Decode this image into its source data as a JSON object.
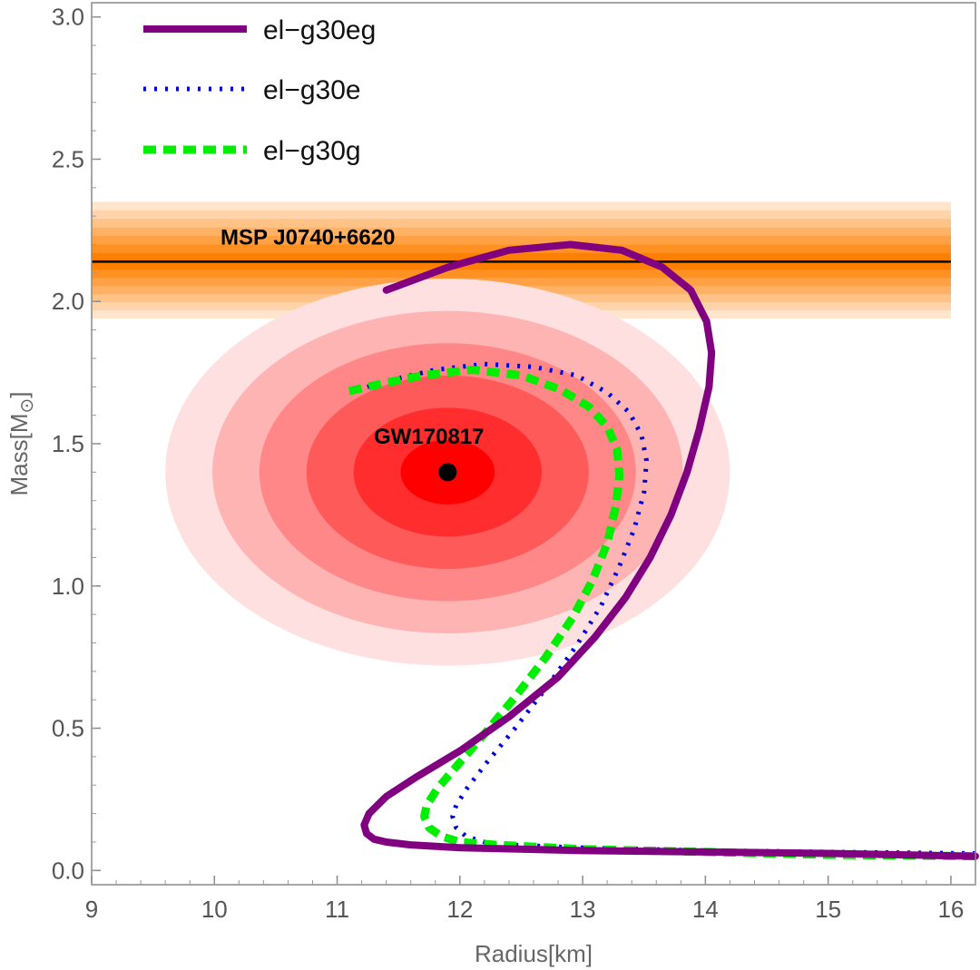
{
  "chart_data": {
    "type": "line",
    "title": "",
    "xlabel": "Radius[km]",
    "ylabel": "Mass[M",
    "ylabel_subscript": "⊙",
    "ylabel_close": "]",
    "xlim": [
      9,
      16.2
    ],
    "ylim": [
      -0.05,
      3.05
    ],
    "xticks": [
      9,
      10,
      11,
      12,
      13,
      14,
      15,
      16
    ],
    "yticks": [
      0.0,
      0.5,
      1.0,
      1.5,
      2.0,
      2.5,
      3.0
    ],
    "xtick_labels": [
      "9",
      "10",
      "11",
      "12",
      "13",
      "14",
      "15",
      "16"
    ],
    "ytick_labels": [
      "0.0",
      "0.5",
      "1.0",
      "1.5",
      "2.0",
      "2.5",
      "3.0"
    ],
    "grid": false,
    "legend_position": "top-left",
    "series": [
      {
        "name": "el−g30eg",
        "color": "#800080",
        "style": "solid",
        "x": [
          16.2,
          15.0,
          14.0,
          13.0,
          12.0,
          11.6,
          11.4,
          11.3,
          11.24,
          11.22,
          11.26,
          11.4,
          11.65,
          12.0,
          12.4,
          12.8,
          13.1,
          13.35,
          13.55,
          13.72,
          13.85,
          13.95,
          14.03,
          14.05,
          14.01,
          13.88,
          13.65,
          13.32,
          12.9,
          12.4,
          11.9,
          11.4
        ],
        "y": [
          0.05,
          0.06,
          0.065,
          0.07,
          0.08,
          0.09,
          0.1,
          0.11,
          0.13,
          0.16,
          0.2,
          0.26,
          0.33,
          0.42,
          0.54,
          0.68,
          0.82,
          0.96,
          1.1,
          1.25,
          1.4,
          1.55,
          1.7,
          1.82,
          1.93,
          2.04,
          2.12,
          2.18,
          2.2,
          2.18,
          2.12,
          2.04
        ]
      },
      {
        "name": "el−g30e",
        "color": "#0000dd",
        "style": "dotted",
        "x": [
          16.2,
          15.0,
          14.0,
          13.0,
          12.4,
          12.2,
          12.05,
          11.97,
          11.94,
          11.97,
          12.06,
          12.22,
          12.45,
          12.7,
          12.95,
          13.15,
          13.3,
          13.42,
          13.5,
          13.52,
          13.48,
          13.38,
          13.2,
          12.95,
          12.6,
          12.2,
          11.8,
          11.4,
          11.1
        ],
        "y": [
          0.06,
          0.065,
          0.07,
          0.08,
          0.09,
          0.1,
          0.12,
          0.15,
          0.19,
          0.23,
          0.29,
          0.38,
          0.5,
          0.64,
          0.79,
          0.93,
          1.07,
          1.2,
          1.33,
          1.44,
          1.53,
          1.61,
          1.68,
          1.74,
          1.77,
          1.78,
          1.76,
          1.72,
          1.68
        ]
      },
      {
        "name": "el−g30g",
        "color": "#00ee00",
        "style": "dashed",
        "x": [
          16.2,
          15.0,
          14.0,
          13.0,
          12.3,
          12.0,
          11.85,
          11.75,
          11.71,
          11.73,
          11.82,
          11.98,
          12.2,
          12.45,
          12.7,
          12.92,
          13.08,
          13.2,
          13.27,
          13.3,
          13.28,
          13.2,
          13.05,
          12.82,
          12.5,
          12.1,
          11.7,
          11.35,
          11.05
        ],
        "y": [
          0.05,
          0.055,
          0.065,
          0.075,
          0.09,
          0.1,
          0.12,
          0.15,
          0.19,
          0.23,
          0.29,
          0.37,
          0.48,
          0.61,
          0.75,
          0.89,
          1.02,
          1.15,
          1.28,
          1.39,
          1.48,
          1.56,
          1.63,
          1.69,
          1.74,
          1.76,
          1.74,
          1.71,
          1.68
        ]
      }
    ],
    "annotations": [
      {
        "text": "MSP J0740+6620",
        "x": 10.05,
        "y": 2.2
      },
      {
        "text": "GW170817",
        "x": 11.3,
        "y": 1.5
      }
    ],
    "band": {
      "name": "MSP J0740+6620",
      "center": 2.14,
      "low": 1.94,
      "high": 2.35,
      "x_from": 9,
      "x_to": 16,
      "color": "#ff7f00"
    },
    "ellipse": {
      "name": "GW170817",
      "center_x": 11.9,
      "center_y": 1.4,
      "radius_x": 2.3,
      "radius_y": 0.68,
      "color": "#ff0000",
      "marker_color": "#000000"
    }
  }
}
